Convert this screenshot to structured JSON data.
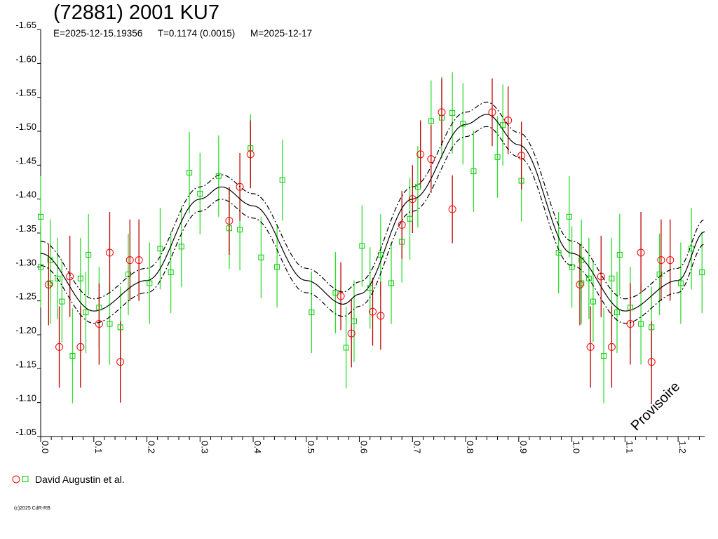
{
  "chart_data": {
    "type": "scatter",
    "title": "(72881) 2001 KU7",
    "subtitle": {
      "epoch": "E=2025-12-15.19356",
      "period": "T=0.1174 (0.0015)",
      "measured": "M=2025-12-17"
    },
    "xlabel": "",
    "ylabel": "",
    "xlim": [
      0.0,
      1.25
    ],
    "ylim": [
      -1.65,
      -1.05
    ],
    "y_inverted": true,
    "x_ticks": [
      "0.0",
      "0.1",
      "0.2",
      "0.3",
      "0.4",
      "0.5",
      "0.6",
      "0.7",
      "0.8",
      "0.9",
      "1.0",
      "1.1",
      "1.2"
    ],
    "y_ticks": [
      "-1.65",
      "-1.60",
      "-1.55",
      "-1.50",
      "-1.45",
      "-1.40",
      "-1.35",
      "-1.30",
      "-1.25",
      "-1.20",
      "-1.15",
      "-1.10",
      "-1.05"
    ],
    "fit": {
      "label": "",
      "phases": [
        0.0,
        0.1,
        0.2,
        0.3,
        0.34,
        0.4,
        0.5,
        0.57,
        0.6,
        0.7,
        0.8,
        0.84,
        0.9,
        1.0,
        1.1,
        1.2,
        1.25
      ],
      "values": [
        -1.32,
        -1.235,
        -1.28,
        -1.4,
        -1.418,
        -1.39,
        -1.28,
        -1.245,
        -1.26,
        -1.4,
        -1.51,
        -1.525,
        -1.48,
        -1.32,
        -1.235,
        -1.28,
        -1.352
      ],
      "band": 0.018,
      "colors": {
        "fit": "#000000"
      }
    },
    "series": [
      {
        "name": "",
        "marker": "circle",
        "color": "#ff0000",
        "errbar_color": "#c00000",
        "points": [
          [
            0.015,
            -1.274,
            0.06
          ],
          [
            0.035,
            -1.182,
            0.06
          ],
          [
            0.055,
            -1.286,
            0.06
          ],
          [
            0.075,
            -1.182,
            0.06
          ],
          [
            0.11,
            -1.216,
            0.06
          ],
          [
            0.13,
            -1.321,
            0.06
          ],
          [
            0.15,
            -1.16,
            0.06
          ],
          [
            0.168,
            -1.31,
            0.06
          ],
          [
            0.185,
            -1.31,
            0.06
          ],
          [
            0.355,
            -1.368,
            0.05
          ],
          [
            0.375,
            -1.418,
            0.05
          ],
          [
            0.395,
            -1.466,
            0.05
          ],
          [
            0.565,
            -1.257,
            0.05
          ],
          [
            0.585,
            -1.202,
            0.05
          ],
          [
            0.625,
            -1.234,
            0.05
          ],
          [
            0.64,
            -1.228,
            0.05
          ],
          [
            0.68,
            -1.362,
            0.05
          ],
          [
            0.7,
            -1.4,
            0.05
          ],
          [
            0.715,
            -1.466,
            0.05
          ],
          [
            0.735,
            -1.459,
            0.05
          ],
          [
            0.755,
            -1.528,
            0.05
          ],
          [
            0.775,
            -1.385,
            0.05
          ],
          [
            0.85,
            -1.528,
            0.05
          ],
          [
            0.88,
            -1.516,
            0.05
          ],
          [
            0.905,
            -1.464,
            0.05
          ],
          [
            1.015,
            -1.274,
            0.06
          ],
          [
            1.035,
            -1.182,
            0.06
          ],
          [
            1.055,
            -1.286,
            0.06
          ],
          [
            1.075,
            -1.182,
            0.06
          ],
          [
            1.11,
            -1.216,
            0.06
          ],
          [
            1.13,
            -1.321,
            0.06
          ],
          [
            1.15,
            -1.16,
            0.06
          ],
          [
            1.168,
            -1.31,
            0.06
          ],
          [
            1.185,
            -1.31,
            0.06
          ]
        ]
      },
      {
        "name": "",
        "marker": "square",
        "color": "#00cc00",
        "errbar_color": "#33dd33",
        "points": [
          [
            0.0,
            -1.374,
            0.06
          ],
          [
            0.0,
            -1.3,
            0.06
          ],
          [
            0.018,
            -1.31,
            0.06
          ],
          [
            0.018,
            -1.276,
            0.06
          ],
          [
            0.032,
            -1.283,
            0.06
          ],
          [
            0.04,
            -1.249,
            0.06
          ],
          [
            0.06,
            -1.169,
            0.07
          ],
          [
            0.075,
            -1.283,
            0.06
          ],
          [
            0.085,
            -1.233,
            0.06
          ],
          [
            0.09,
            -1.318,
            0.06
          ],
          [
            0.11,
            -1.24,
            0.06
          ],
          [
            0.13,
            -1.216,
            0.06
          ],
          [
            0.15,
            -1.211,
            0.06
          ],
          [
            0.165,
            -1.289,
            0.06
          ],
          [
            0.205,
            -1.276,
            0.06
          ],
          [
            0.225,
            -1.327,
            0.06
          ],
          [
            0.245,
            -1.292,
            0.06
          ],
          [
            0.265,
            -1.33,
            0.06
          ],
          [
            0.28,
            -1.439,
            0.06
          ],
          [
            0.3,
            -1.408,
            0.06
          ],
          [
            0.335,
            -1.434,
            0.06
          ],
          [
            0.355,
            -1.357,
            0.06
          ],
          [
            0.375,
            -1.355,
            0.06
          ],
          [
            0.395,
            -1.475,
            0.05
          ],
          [
            0.415,
            -1.314,
            0.06
          ],
          [
            0.445,
            -1.3,
            0.06
          ],
          [
            0.455,
            -1.428,
            0.06
          ],
          [
            0.51,
            -1.233,
            0.06
          ],
          [
            0.555,
            -1.262,
            0.06
          ],
          [
            0.575,
            -1.181,
            0.06
          ],
          [
            0.59,
            -1.22,
            0.06
          ],
          [
            0.605,
            -1.331,
            0.06
          ],
          [
            0.62,
            -1.269,
            0.06
          ],
          [
            0.64,
            -1.318,
            0.06
          ],
          [
            0.66,
            -1.276,
            0.06
          ],
          [
            0.68,
            -1.337,
            0.06
          ],
          [
            0.695,
            -1.371,
            0.06
          ],
          [
            0.71,
            -1.418,
            0.06
          ],
          [
            0.735,
            -1.515,
            0.06
          ],
          [
            0.755,
            -1.52,
            0.06
          ],
          [
            0.775,
            -1.527,
            0.06
          ],
          [
            0.795,
            -1.511,
            0.06
          ],
          [
            0.815,
            -1.441,
            0.06
          ],
          [
            0.86,
            -1.462,
            0.06
          ],
          [
            0.87,
            -1.509,
            0.06
          ],
          [
            0.905,
            -1.427,
            0.06
          ],
          [
            0.975,
            -1.321,
            0.06
          ],
          [
            0.995,
            -1.374,
            0.06
          ],
          [
            1.0,
            -1.3,
            0.06
          ],
          [
            1.018,
            -1.31,
            0.06
          ],
          [
            1.018,
            -1.276,
            0.06
          ],
          [
            1.032,
            -1.283,
            0.06
          ],
          [
            1.04,
            -1.249,
            0.06
          ],
          [
            1.06,
            -1.169,
            0.07
          ],
          [
            1.075,
            -1.283,
            0.06
          ],
          [
            1.085,
            -1.233,
            0.06
          ],
          [
            1.09,
            -1.318,
            0.06
          ],
          [
            1.11,
            -1.24,
            0.06
          ],
          [
            1.13,
            -1.216,
            0.06
          ],
          [
            1.15,
            -1.211,
            0.06
          ],
          [
            1.165,
            -1.289,
            0.06
          ],
          [
            1.205,
            -1.276,
            0.06
          ],
          [
            1.225,
            -1.327,
            0.06
          ],
          [
            1.245,
            -1.292,
            0.06
          ]
        ]
      }
    ],
    "legend": {
      "label": "David Augustin et al.",
      "placement": "bottom-left"
    },
    "annotations": {
      "watermark": "Provisoire",
      "copyright": "(c)2025 CdR-RB"
    },
    "grid": false
  }
}
